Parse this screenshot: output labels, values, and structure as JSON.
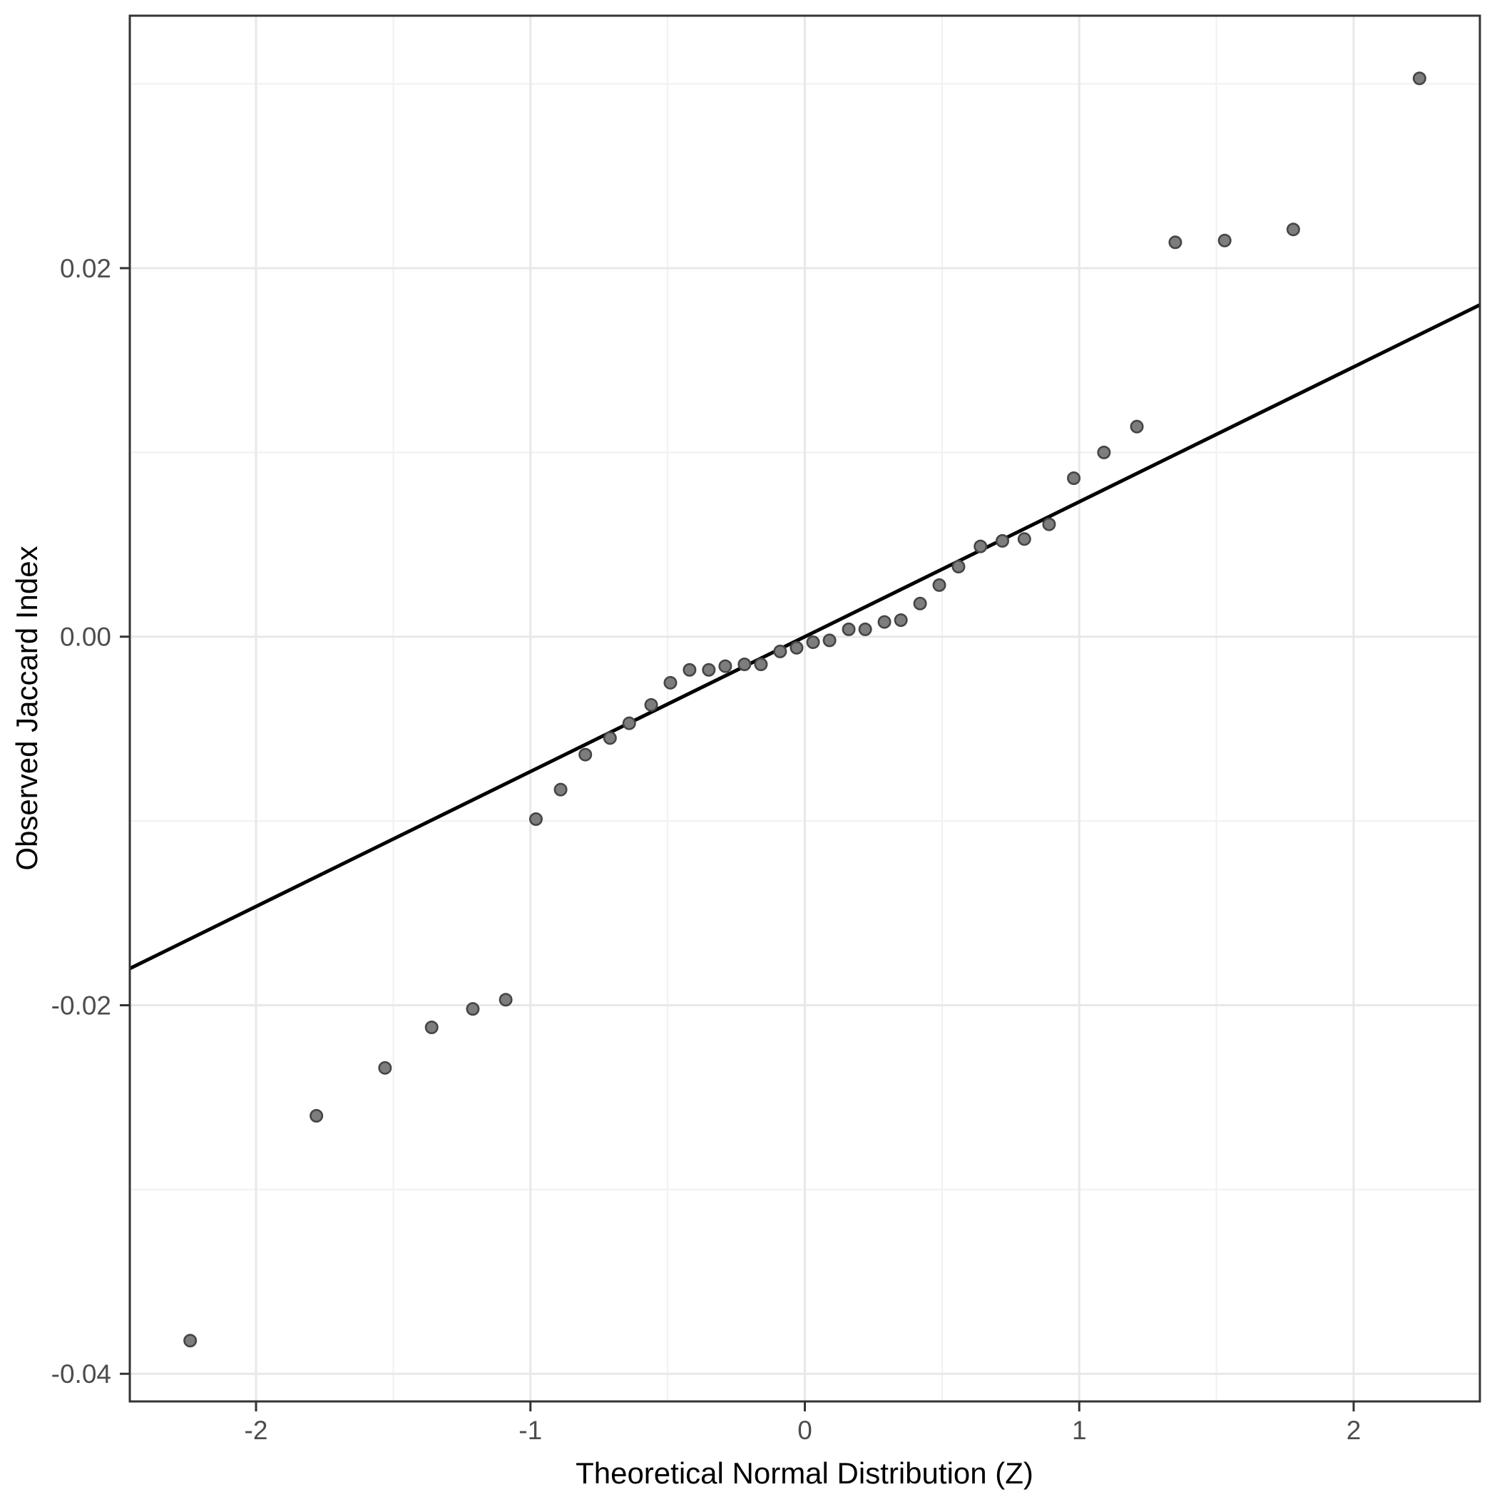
{
  "figure": {
    "x_axis_title": "Theoretical Normal Distribution (Z)",
    "y_axis_title": "Observed Jaccard Index"
  },
  "chart_data": {
    "type": "scatter",
    "title": "",
    "xlabel": "Theoretical Normal Distribution (Z)",
    "ylabel": "Observed Jaccard Index",
    "xlim": [
      -2.46,
      2.46
    ],
    "ylim": [
      -0.0415,
      0.0337
    ],
    "grid": "major+minor",
    "legend": "none",
    "x_major_ticks": [
      -2,
      -1,
      0,
      1,
      2
    ],
    "x_tick_labels": [
      "-2",
      "-1",
      "0",
      "1",
      "2"
    ],
    "x_minor_ticks": [
      -1.5,
      -0.5,
      0.5,
      1.5
    ],
    "y_major_ticks": [
      0.02,
      0.0,
      -0.02,
      -0.04
    ],
    "y_tick_labels": [
      "0.02",
      "0.00",
      "-0.02",
      "-0.04"
    ],
    "y_minor_ticks": [
      0.03,
      0.01,
      -0.01,
      -0.03
    ],
    "reference_line": {
      "slope": 0.00732,
      "intercept": 0.0,
      "color": "#000000"
    },
    "point_style": {
      "fill": "#7d7d7d",
      "stroke": "#454545"
    },
    "points": [
      [
        -2.24,
        -0.0382
      ],
      [
        -1.78,
        -0.026
      ],
      [
        -1.53,
        -0.0234
      ],
      [
        -1.36,
        -0.0212
      ],
      [
        -1.21,
        -0.0202
      ],
      [
        -1.09,
        -0.0197
      ],
      [
        -0.98,
        -0.0099
      ],
      [
        -0.89,
        -0.0083
      ],
      [
        -0.8,
        -0.0064
      ],
      [
        -0.71,
        -0.0055
      ],
      [
        -0.64,
        -0.0047
      ],
      [
        -0.56,
        -0.0037
      ],
      [
        -0.49,
        -0.0025
      ],
      [
        -0.42,
        -0.0018
      ],
      [
        -0.35,
        -0.0018
      ],
      [
        -0.29,
        -0.0016
      ],
      [
        -0.22,
        -0.0015
      ],
      [
        -0.16,
        -0.0015
      ],
      [
        -0.09,
        -0.0008
      ],
      [
        -0.03,
        -0.0006
      ],
      [
        0.03,
        -0.0003
      ],
      [
        0.09,
        -0.0002
      ],
      [
        0.16,
        0.0004
      ],
      [
        0.22,
        0.0004
      ],
      [
        0.29,
        0.0008
      ],
      [
        0.35,
        0.0009
      ],
      [
        0.42,
        0.0018
      ],
      [
        0.49,
        0.0028
      ],
      [
        0.56,
        0.0038
      ],
      [
        0.64,
        0.0049
      ],
      [
        0.72,
        0.0052
      ],
      [
        0.8,
        0.0053
      ],
      [
        0.89,
        0.0061
      ],
      [
        0.98,
        0.0086
      ],
      [
        1.09,
        0.01
      ],
      [
        1.21,
        0.0114
      ],
      [
        1.35,
        0.0214
      ],
      [
        1.53,
        0.0215
      ],
      [
        1.78,
        0.0221
      ],
      [
        2.24,
        0.0303
      ]
    ]
  }
}
